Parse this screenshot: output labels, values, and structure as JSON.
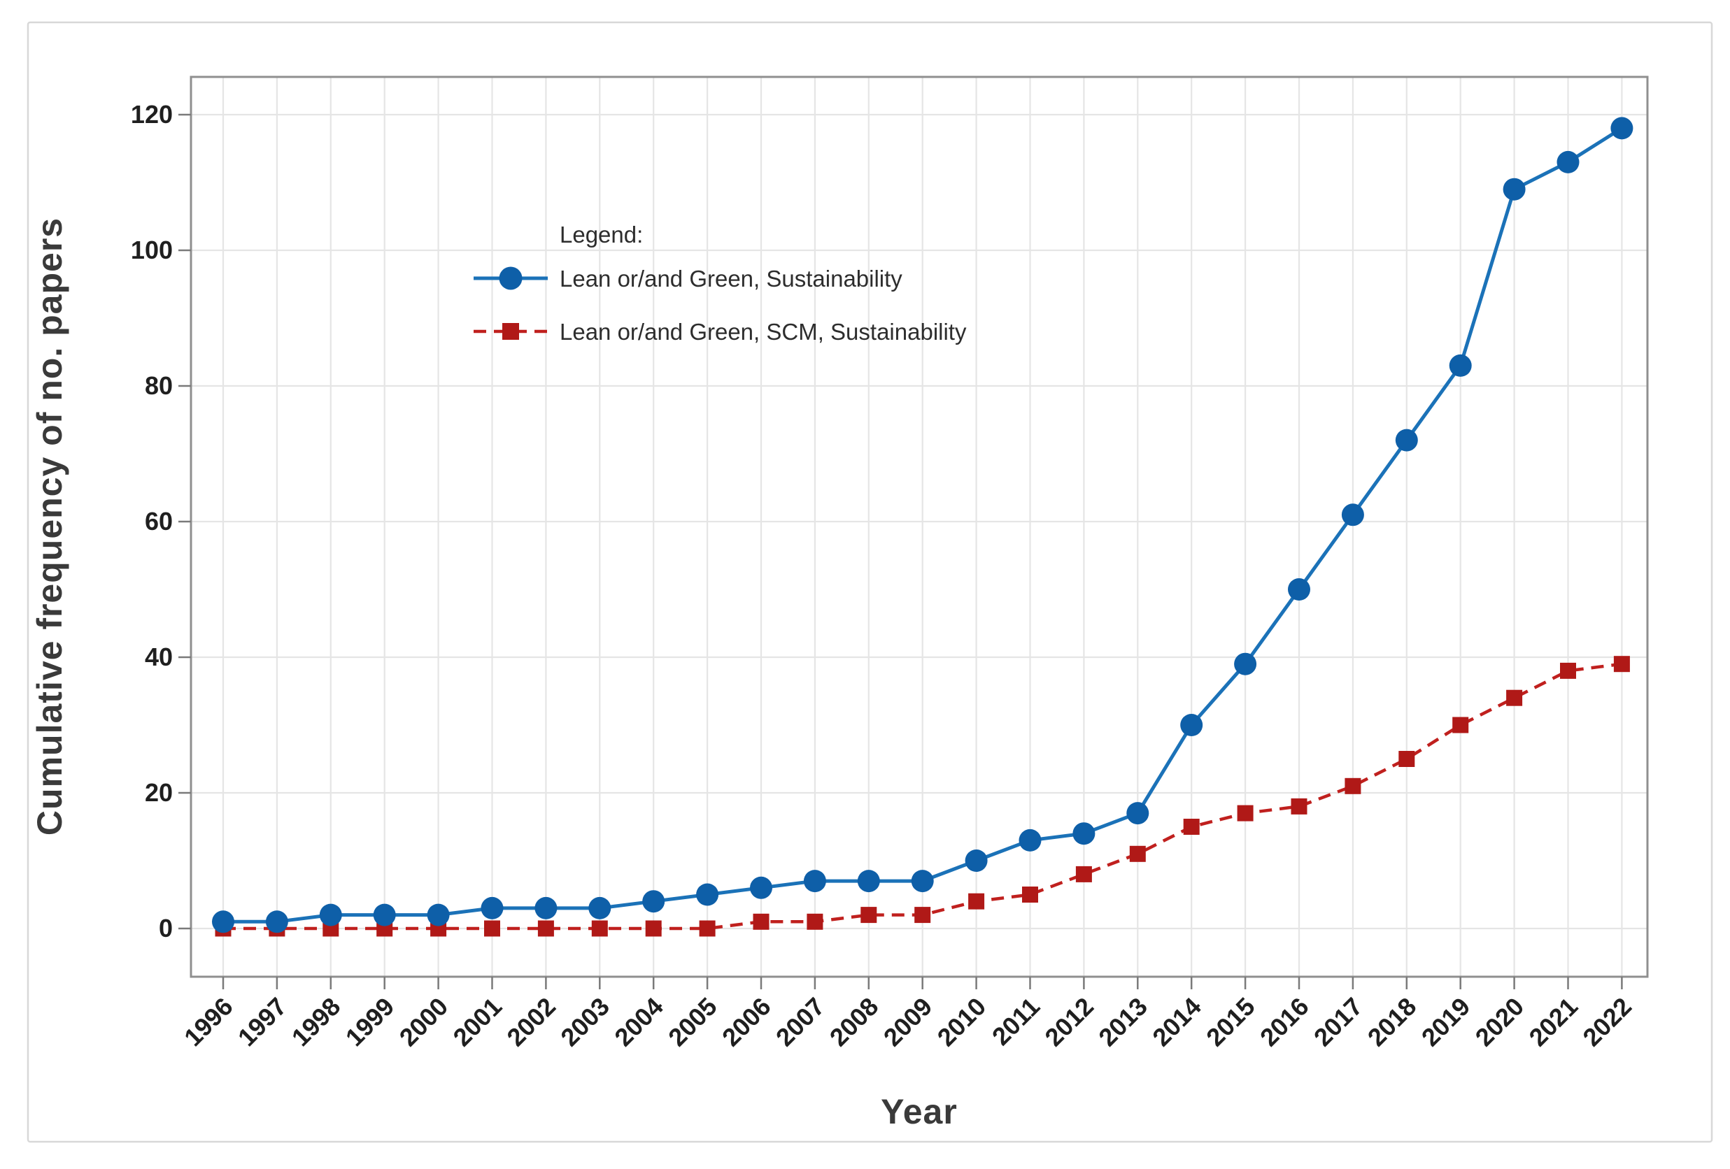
{
  "figure": {
    "background": "#ffffff",
    "border_color": "#d8d8d8"
  },
  "chart_data": {
    "type": "line",
    "title": "",
    "xlabel": "Year",
    "ylabel": "Cumulative frequency of no. papers",
    "x": [
      1996,
      1997,
      1998,
      1999,
      2000,
      2001,
      2002,
      2003,
      2004,
      2005,
      2006,
      2007,
      2008,
      2009,
      2010,
      2011,
      2012,
      2013,
      2014,
      2015,
      2016,
      2017,
      2018,
      2019,
      2020,
      2021,
      2022
    ],
    "y_ticks": [
      0,
      20,
      40,
      60,
      80,
      100,
      120
    ],
    "ylim": [
      0,
      120
    ],
    "grid": true,
    "legend": {
      "title": "Legend:",
      "position": "upper-left-inside"
    },
    "series": [
      {
        "name": "Lean or/and Green, Sustainability",
        "marker": "circle",
        "line_style": "solid",
        "color": "#0e5fa8",
        "line_color": "#1b72b8",
        "values": [
          1,
          1,
          2,
          2,
          2,
          3,
          3,
          3,
          4,
          5,
          6,
          7,
          7,
          7,
          10,
          13,
          14,
          17,
          30,
          39,
          50,
          61,
          72,
          83,
          109,
          113,
          118
        ]
      },
      {
        "name": "Lean or/and Green, SCM, Sustainability",
        "marker": "square",
        "line_style": "dashed",
        "color": "#b01917",
        "line_color": "#c0201e",
        "values": [
          0,
          0,
          0,
          0,
          0,
          0,
          0,
          0,
          0,
          0,
          1,
          1,
          2,
          2,
          4,
          5,
          8,
          11,
          15,
          17,
          18,
          21,
          25,
          30,
          34,
          38,
          39
        ]
      }
    ]
  }
}
